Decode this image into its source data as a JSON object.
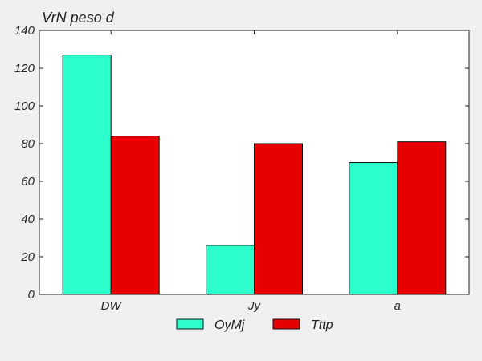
{
  "chart_data": {
    "type": "bar",
    "title": "VrN peso d",
    "xlabel": "",
    "ylabel": "",
    "categories": [
      "DW",
      "Jy",
      "a"
    ],
    "series": [
      {
        "name": "OyMj",
        "color": "#2dffcc",
        "values": [
          127,
          26,
          70
        ]
      },
      {
        "name": "Tttp",
        "color": "#e60000",
        "values": [
          84,
          80,
          81
        ]
      }
    ],
    "ylim": [
      0,
      140
    ],
    "yticks": [
      0,
      20,
      40,
      60,
      80,
      100,
      120,
      140
    ],
    "ytick_labels": [
      "0",
      "20",
      "40",
      "60",
      "80",
      "100",
      "120",
      "140"
    ],
    "grid": false,
    "legend_position": "bottom-center"
  }
}
